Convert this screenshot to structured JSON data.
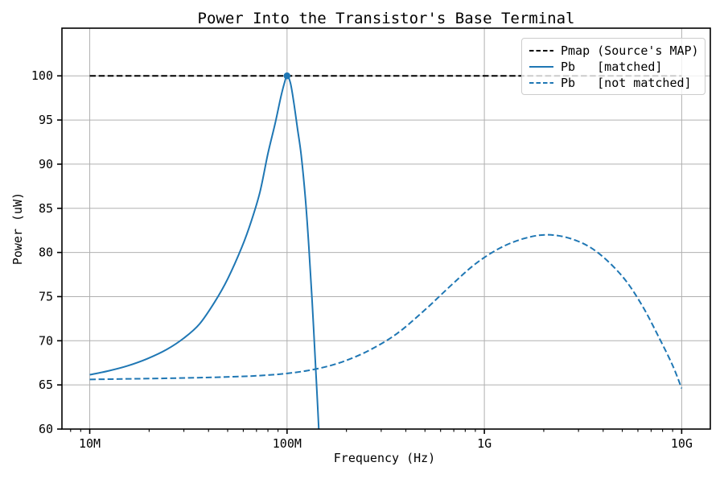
{
  "colors": {
    "accent_blue": "#1f77b4",
    "line_black": "#000000",
    "grid": "#b0b0b0",
    "axis": "#000000",
    "background": "#ffffff",
    "legend_border": "#cccccc"
  },
  "chart_data": {
    "type": "line",
    "title": "Power Into the Transistor's Base Terminal",
    "xlabel": "Frequency (Hz)",
    "ylabel": "Power (uW)",
    "x_scale": "log",
    "grid": true,
    "legend_position": "upper right",
    "xlim": [
      7230000,
      13970000000
    ],
    "ylim": [
      60,
      105.4
    ],
    "x_ticks": [
      {
        "value": 10000000,
        "label": "10M"
      },
      {
        "value": 100000000,
        "label": "100M"
      },
      {
        "value": 1000000000,
        "label": "1G"
      },
      {
        "value": 10000000000,
        "label": "10G"
      }
    ],
    "y_ticks": [
      {
        "value": 60,
        "label": "60"
      },
      {
        "value": 65,
        "label": "65"
      },
      {
        "value": 70,
        "label": "70"
      },
      {
        "value": 75,
        "label": "75"
      },
      {
        "value": 80,
        "label": "80"
      },
      {
        "value": 85,
        "label": "85"
      },
      {
        "value": 90,
        "label": "90"
      },
      {
        "value": 95,
        "label": "95"
      },
      {
        "value": 100,
        "label": "100"
      }
    ],
    "series": [
      {
        "name": "Pmap (Source's MAP)",
        "color": "#000000",
        "style": "dashed",
        "x": [
          10000000,
          10000000000
        ],
        "y": [
          100,
          100
        ]
      },
      {
        "name": "Pb   [matched]",
        "color": "#1f77b4",
        "style": "solid",
        "peak_marker": {
          "x": 100000000,
          "y": 100
        },
        "x": [
          10000000,
          12500000,
          15500000,
          19500000,
          24500000,
          30000000,
          36000000,
          43000000,
          50000000,
          59000000,
          66000000,
          73000000,
          80000000,
          87000000,
          93000000,
          97000000,
          100000000,
          104000000,
          108000000,
          113000000,
          118000000,
          124000000,
          129000000,
          134000000,
          139000000,
          143000000,
          147000000
        ],
        "y": [
          66.15,
          66.6,
          67.15,
          67.95,
          69.0,
          70.3,
          71.9,
          74.4,
          77.0,
          80.6,
          83.6,
          86.9,
          91.2,
          94.6,
          97.6,
          99.2,
          100.0,
          99.2,
          97.1,
          94.0,
          91.0,
          86.0,
          80.6,
          74.5,
          67.8,
          62.5,
          57.0
        ]
      },
      {
        "name": "Pb   [not matched]",
        "color": "#1f77b4",
        "style": "dashed",
        "x": [
          10000000,
          15000000,
          22000000,
          32000000,
          46000000,
          68000000,
          100000000,
          140000000,
          190000000,
          260000000,
          360000000,
          500000000,
          680000000,
          900000000,
          1200000000,
          1600000000,
          2100000000,
          2800000000,
          3700000000,
          5000000000,
          6300000000,
          7700000000,
          9000000000,
          10000000000
        ],
        "y": [
          65.62,
          65.68,
          65.73,
          65.8,
          65.88,
          66.02,
          66.3,
          66.8,
          67.6,
          68.9,
          70.8,
          73.5,
          76.3,
          78.7,
          80.5,
          81.6,
          82.0,
          81.5,
          80.1,
          77.3,
          74.0,
          70.3,
          67.2,
          64.6
        ]
      }
    ]
  }
}
